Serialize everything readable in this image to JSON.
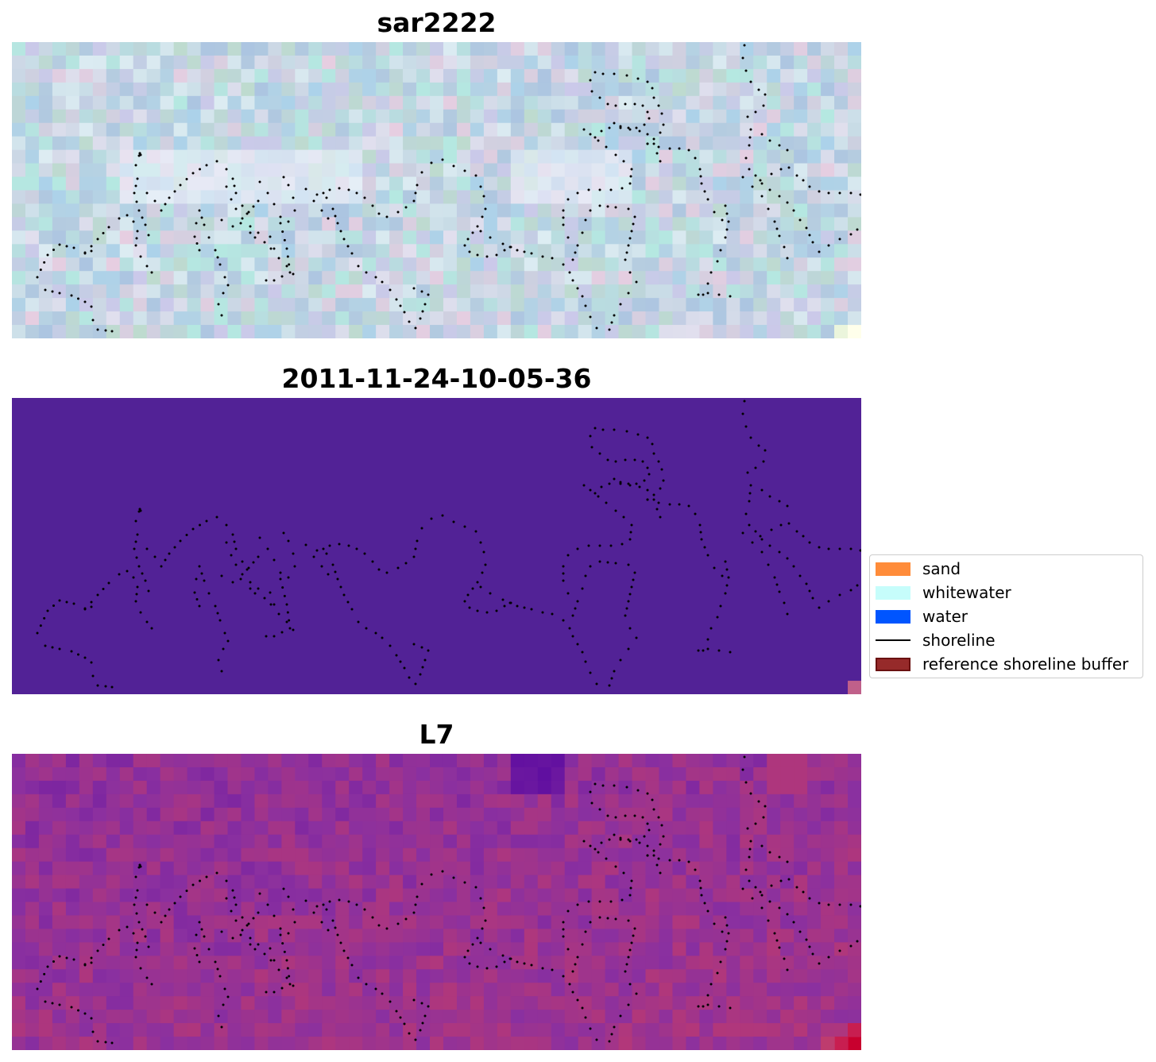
{
  "panels": [
    {
      "title": "sar2222",
      "style": "rgb"
    },
    {
      "title": "2011-11-24-10-05-36",
      "style": "classified"
    },
    {
      "title": "L7",
      "style": "index"
    }
  ],
  "legend": {
    "items": [
      {
        "label": "sand",
        "kind": "patch",
        "color": "#ff8c3a"
      },
      {
        "label": "whitewater",
        "kind": "patch",
        "color": "#c6fdfb"
      },
      {
        "label": "water",
        "kind": "patch",
        "color": "#0055ff"
      },
      {
        "label": "shoreline",
        "kind": "line",
        "color": "#000000"
      },
      {
        "label": "reference shoreline buffer",
        "kind": "patch",
        "color": "#962a2a",
        "edge": "#6a1010"
      }
    ]
  },
  "colors": {
    "classified_background": "#522296",
    "classified_corner_pixel": "#c0608a",
    "index_low": "#5a0aa0",
    "index_mid": "#8a30a0",
    "index_high": "#c23a6a",
    "index_max": "#c8002e",
    "rgb_base": "#bcd2df"
  }
}
